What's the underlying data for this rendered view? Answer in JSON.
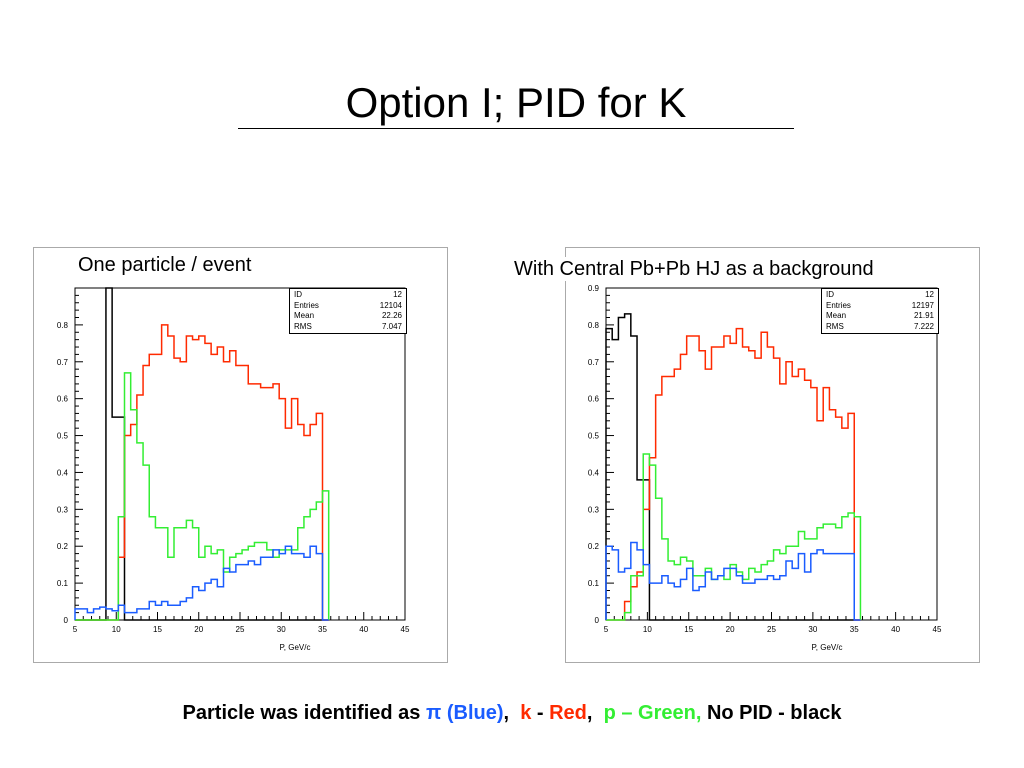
{
  "slide": {
    "title": "Option I; PID for K",
    "legend": {
      "prefix": "Particle was identified as",
      "pi": "π (Blue)",
      "sep1": ",",
      "k": "k",
      "dash1": "-",
      "red": "Red",
      "sep2": ",",
      "p_green": "p – Green,",
      "no_pid": "No PID - black"
    },
    "colors": {
      "pi": "#1a5cff",
      "k": "#ff2a00",
      "p": "#33ee33",
      "none": "#000000"
    }
  },
  "chart_data": [
    {
      "type": "histogram",
      "caption": "One particle  /  event",
      "xlabel": "P, GeV/c",
      "ylabel": "",
      "xlim": [
        5,
        45
      ],
      "ylim": [
        0,
        0.9
      ],
      "xticks": [
        5,
        10,
        15,
        20,
        25,
        30,
        35,
        40,
        45
      ],
      "yticks": [
        0,
        0.1,
        0.2,
        0.3,
        0.4,
        0.5,
        0.6,
        0.7,
        0.8
      ],
      "stats": [
        {
          "label": "ID",
          "value": "12"
        },
        {
          "label": "Entries",
          "value": "12104"
        },
        {
          "label": "Mean",
          "value": "22.26"
        },
        {
          "label": "RMS",
          "value": "7.047"
        }
      ],
      "bin_width": 0.75,
      "x_start": 5,
      "series": [
        {
          "color": "#000000",
          "values": [
            0,
            0,
            0,
            0,
            0,
            0.9,
            0.55,
            0.55,
            0,
            0,
            0,
            0,
            0,
            0,
            0,
            0,
            0,
            0,
            0,
            0,
            0,
            0,
            0,
            0,
            0,
            0,
            0,
            0,
            0,
            0,
            0,
            0,
            0,
            0,
            0,
            0,
            0,
            0,
            0,
            0,
            0
          ]
        },
        {
          "color": "#ff2a00",
          "values": [
            0,
            0,
            0,
            0,
            0,
            0,
            0,
            0.17,
            0.5,
            0.53,
            0.61,
            0.69,
            0.72,
            0.72,
            0.8,
            0.77,
            0.71,
            0.7,
            0.77,
            0.76,
            0.77,
            0.75,
            0.72,
            0.74,
            0.7,
            0.73,
            0.69,
            0.69,
            0.64,
            0.64,
            0.63,
            0.63,
            0.64,
            0.6,
            0.52,
            0.6,
            0.53,
            0.5,
            0.53,
            0.56,
            0
          ]
        },
        {
          "color": "#33ee33",
          "values": [
            0,
            0,
            0,
            0,
            0,
            0,
            0,
            0.28,
            0.67,
            0.57,
            0.48,
            0.42,
            0.28,
            0.25,
            0.25,
            0.17,
            0.25,
            0.25,
            0.27,
            0.25,
            0.17,
            0.2,
            0.18,
            0.19,
            0.13,
            0.17,
            0.18,
            0.19,
            0.2,
            0.21,
            0.21,
            0.19,
            0.17,
            0.19,
            0.19,
            0.19,
            0.25,
            0.28,
            0.3,
            0.32,
            0.35
          ]
        },
        {
          "color": "#1a5cff",
          "values": [
            0.03,
            0.03,
            0.02,
            0.03,
            0.035,
            0.03,
            0.025,
            0.04,
            0.02,
            0.02,
            0.03,
            0.03,
            0.05,
            0.04,
            0.05,
            0.04,
            0.04,
            0.05,
            0.06,
            0.09,
            0.08,
            0.1,
            0.11,
            0.09,
            0.14,
            0.13,
            0.15,
            0.15,
            0.16,
            0.15,
            0.17,
            0.17,
            0.19,
            0.18,
            0.2,
            0.18,
            0.18,
            0.17,
            0.2,
            0.18,
            0
          ]
        }
      ]
    },
    {
      "type": "histogram",
      "caption": "With Central Pb+Pb HJ as a background",
      "xlabel": "P, GeV/c",
      "ylabel": "",
      "xlim": [
        5,
        45
      ],
      "ylim": [
        0,
        0.9
      ],
      "xticks": [
        5,
        10,
        15,
        20,
        25,
        30,
        35,
        40,
        45
      ],
      "yticks": [
        0,
        0.1,
        0.2,
        0.3,
        0.4,
        0.5,
        0.6,
        0.7,
        0.8,
        0.9
      ],
      "stats": [
        {
          "label": "ID",
          "value": "12"
        },
        {
          "label": "Entries",
          "value": "12197"
        },
        {
          "label": "Mean",
          "value": "21.91"
        },
        {
          "label": "RMS",
          "value": "7.222"
        }
      ],
      "bin_width": 0.75,
      "x_start": 5,
      "series": [
        {
          "color": "#000000",
          "values": [
            0.79,
            0.76,
            0.82,
            0.83,
            0.77,
            0.38,
            0.38,
            0,
            0,
            0,
            0,
            0,
            0,
            0,
            0,
            0,
            0,
            0,
            0,
            0,
            0,
            0,
            0,
            0,
            0,
            0,
            0,
            0,
            0,
            0,
            0,
            0,
            0,
            0,
            0,
            0,
            0,
            0,
            0,
            0,
            0
          ]
        },
        {
          "color": "#ff2a00",
          "values": [
            0,
            0,
            0,
            0.05,
            0.09,
            0.13,
            0.3,
            0.44,
            0.61,
            0.66,
            0.66,
            0.68,
            0.72,
            0.77,
            0.77,
            0.73,
            0.68,
            0.74,
            0.74,
            0.77,
            0.75,
            0.79,
            0.74,
            0.73,
            0.71,
            0.78,
            0.74,
            0.71,
            0.64,
            0.7,
            0.66,
            0.68,
            0.65,
            0.63,
            0.54,
            0.63,
            0.57,
            0.55,
            0.52,
            0.56,
            0
          ]
        },
        {
          "color": "#33ee33",
          "values": [
            0,
            0,
            0,
            0.02,
            0.12,
            0.12,
            0.45,
            0.42,
            0.33,
            0.22,
            0.16,
            0.15,
            0.17,
            0.16,
            0.12,
            0.12,
            0.14,
            0.11,
            0.12,
            0.11,
            0.15,
            0.13,
            0.11,
            0.14,
            0.13,
            0.15,
            0.16,
            0.19,
            0.18,
            0.2,
            0.2,
            0.24,
            0.22,
            0.22,
            0.25,
            0.26,
            0.26,
            0.25,
            0.28,
            0.29,
            0.28
          ]
        },
        {
          "color": "#1a5cff",
          "values": [
            0.2,
            0.19,
            0.13,
            0.14,
            0.21,
            0.19,
            0.15,
            0.1,
            0.1,
            0.12,
            0.1,
            0.09,
            0.11,
            0.14,
            0.08,
            0.09,
            0.13,
            0.11,
            0.12,
            0.14,
            0.14,
            0.12,
            0.1,
            0.1,
            0.11,
            0.11,
            0.12,
            0.11,
            0.12,
            0.16,
            0.14,
            0.18,
            0.13,
            0.18,
            0.19,
            0.18,
            0.18,
            0.18,
            0.18,
            0.18,
            0
          ]
        }
      ]
    }
  ]
}
